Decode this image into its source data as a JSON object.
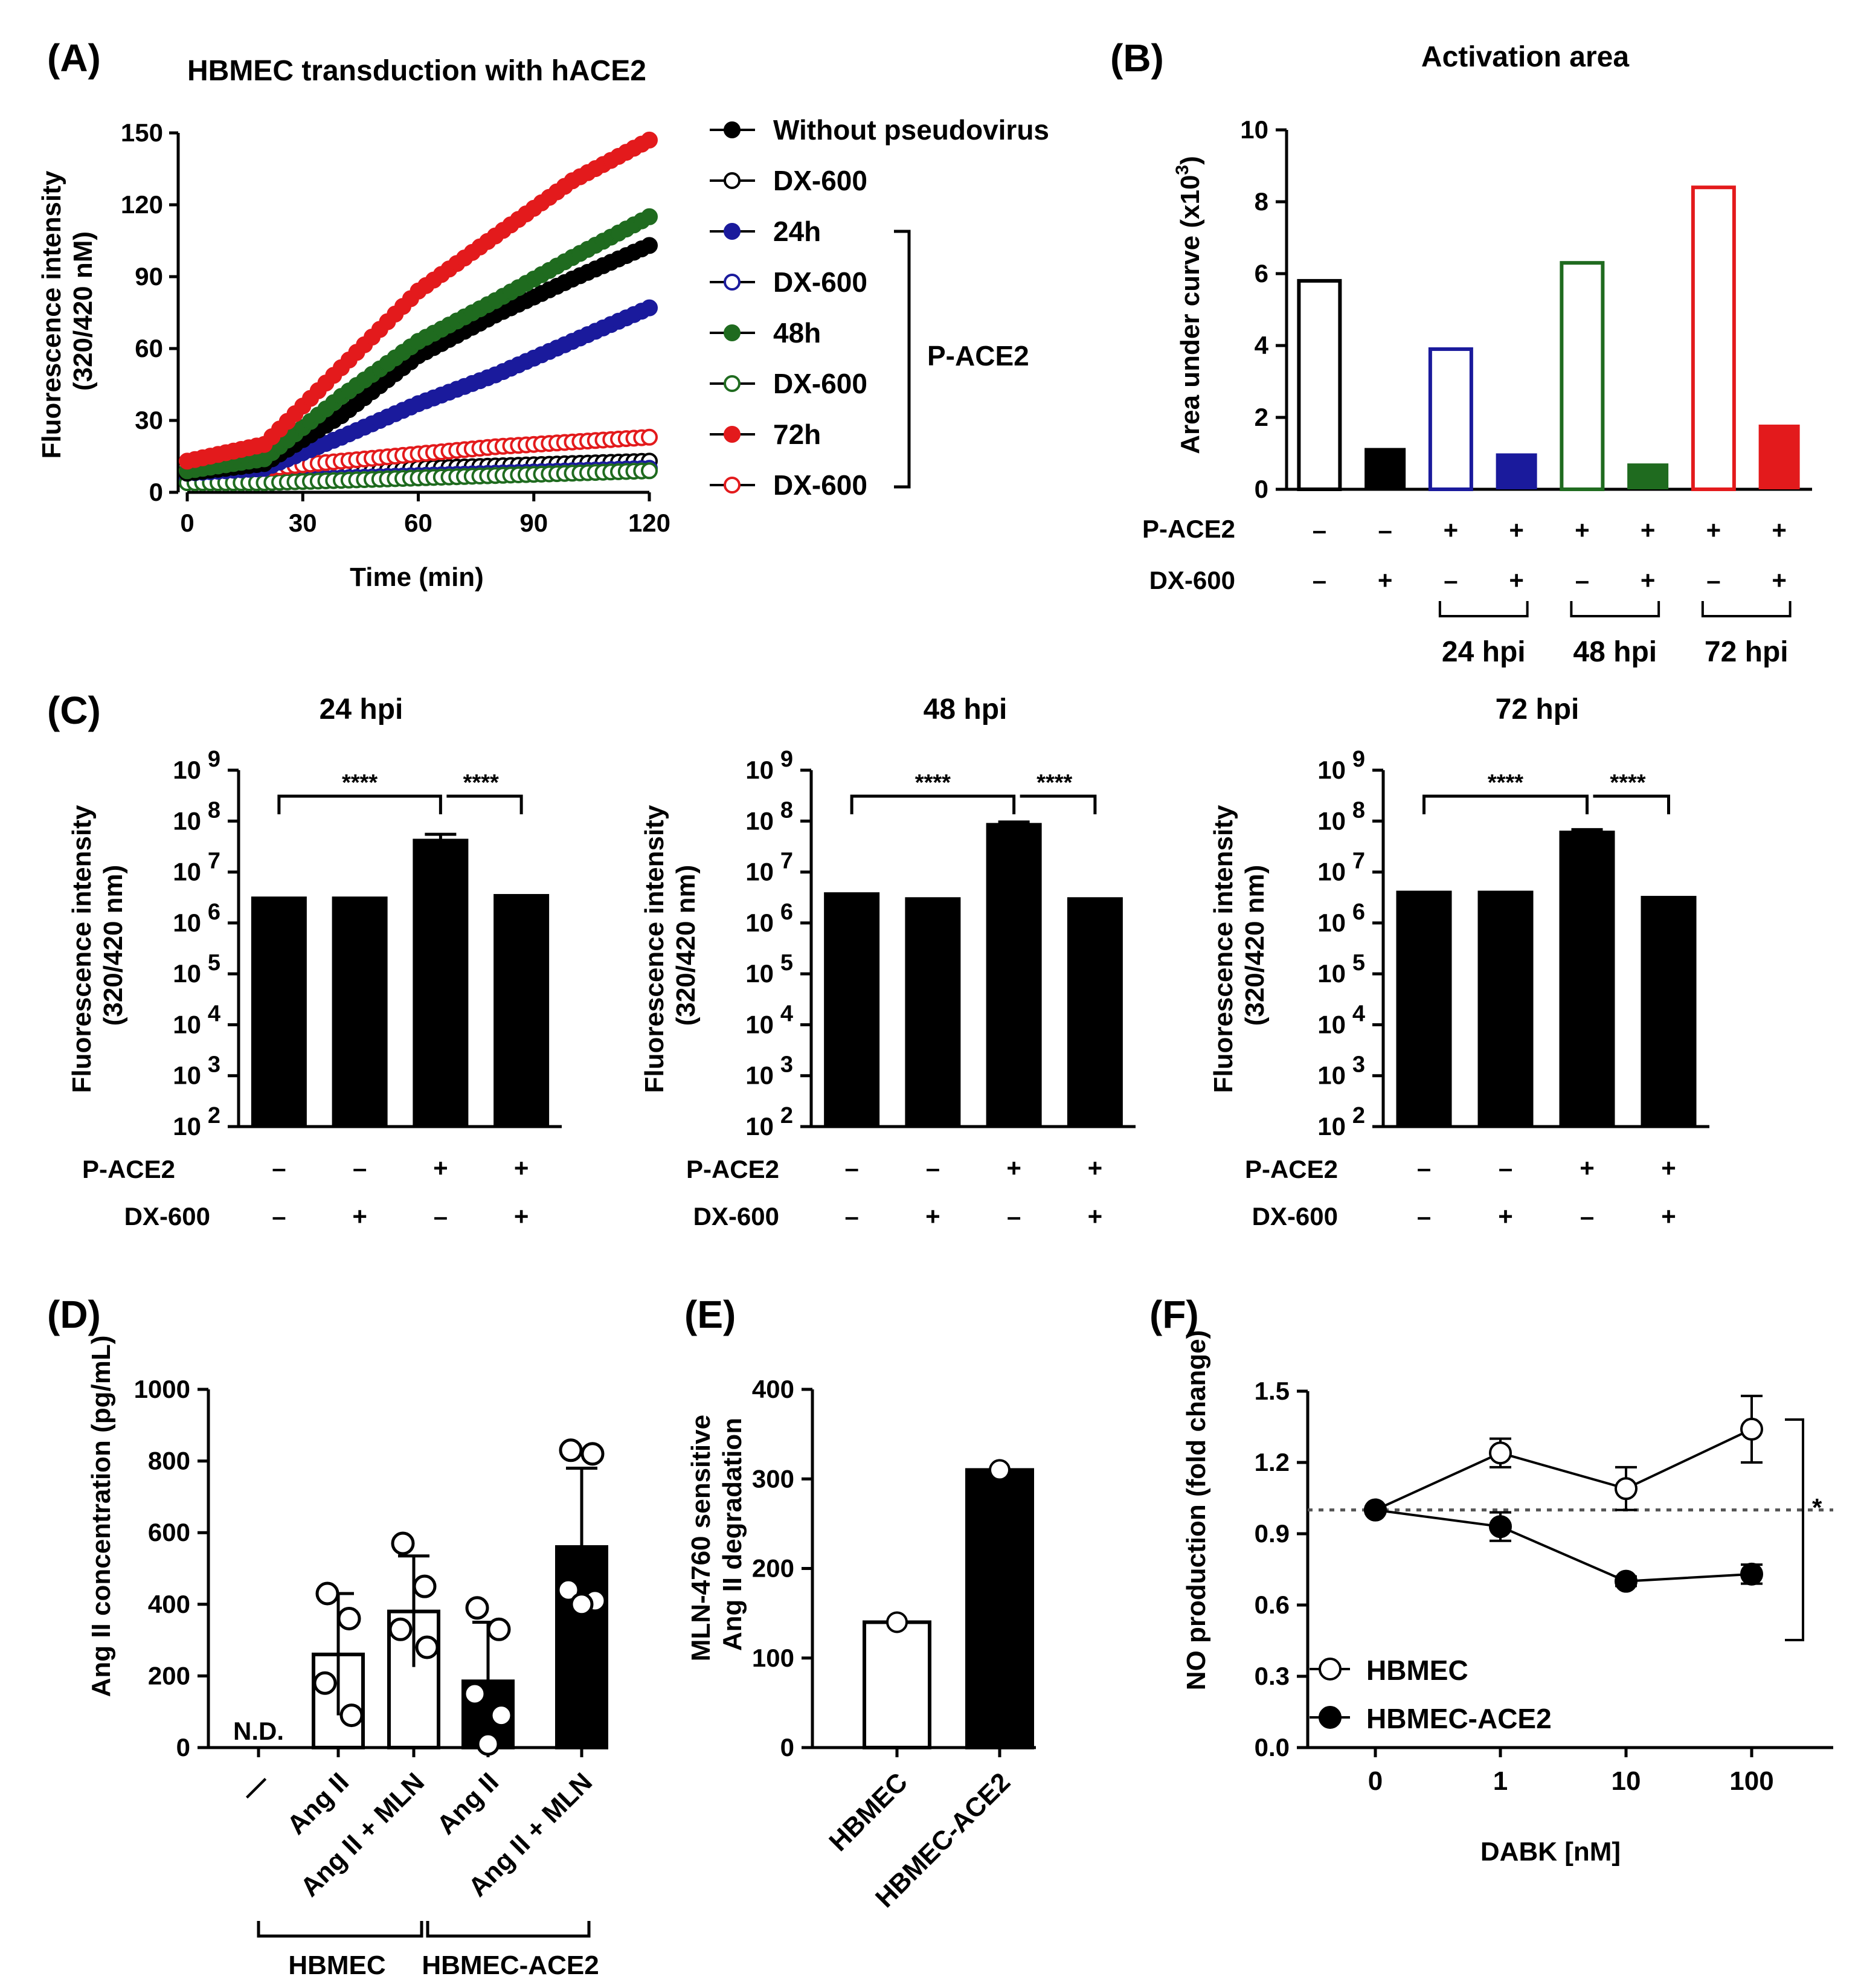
{
  "figure": {
    "A": {
      "label": "(A)",
      "title": "HBMEC transduction with hACE2",
      "xlabel": "Time (min)",
      "ylabel_line1": "Fluorescence intensity",
      "ylabel_line2": "(320/420 nM)",
      "bracket_label": "P-ACE2"
    },
    "B": {
      "label": "(B)",
      "title": "Activation area",
      "ylabel": "Area under curve (x10",
      "ylabel_exp": "3",
      "ylabel_end": ")",
      "row1_label": "P-ACE2",
      "row2_label": "DX-600",
      "group_labels": [
        "24 hpi",
        "48 hpi",
        "72 hpi"
      ]
    },
    "C": {
      "label": "(C)",
      "ylabel_line1": "Fluorescence intensity",
      "ylabel_line2": "(320/420 nm)",
      "row1_label": "P-ACE2",
      "row2_label": "DX-600",
      "sig": "****"
    },
    "D": {
      "label": "(D)",
      "ylabel": "Ang II concentration (pg/mL)",
      "nd_label": "N.D.",
      "groups": [
        "HBMEC",
        "HBMEC-ACE2"
      ]
    },
    "E": {
      "label": "(E)",
      "ylabel_line1": "MLN-4760 sensitive",
      "ylabel_line2": "Ang II degradation"
    },
    "F": {
      "label": "(F)",
      "xlabel": "DABK [nM]",
      "ylabel": "NO production (fold change)",
      "sig": "*"
    },
    "signs": {
      "minus": "–",
      "plus": "+"
    }
  },
  "chart_data": [
    {
      "panel": "A",
      "type": "scatter",
      "title": "HBMEC transduction with hACE2",
      "xlabel": "Time (min)",
      "ylabel": "Fluorescence intensity (320/420 nM)",
      "xlim": [
        0,
        120
      ],
      "ylim": [
        0,
        150
      ],
      "xticks": [
        0,
        30,
        60,
        90,
        120
      ],
      "yticks": [
        0,
        30,
        60,
        90,
        120,
        150
      ],
      "series": [
        {
          "name": "Without pseudovirus",
          "color": "#000000",
          "filled": true,
          "x": [
            0,
            20,
            40,
            60,
            80,
            100,
            120
          ],
          "y": [
            8,
            12,
            32,
            57,
            74,
            89,
            103
          ]
        },
        {
          "name": "DX-600",
          "color": "#000000",
          "filled": false,
          "x": [
            0,
            20,
            40,
            60,
            80,
            100,
            120
          ],
          "y": [
            6,
            6,
            8,
            10,
            11,
            12,
            13
          ]
        },
        {
          "name": "24h",
          "color": "#1a1a9c",
          "filled": true,
          "x": [
            0,
            20,
            40,
            60,
            80,
            100,
            120
          ],
          "y": [
            8,
            10,
            23,
            37,
            49,
            63,
            77
          ]
        },
        {
          "name": "DX-600",
          "color": "#1a1a9c",
          "filled": false,
          "x": [
            0,
            20,
            40,
            60,
            80,
            100,
            120
          ],
          "y": [
            5,
            5,
            6,
            7,
            8,
            9,
            10
          ]
        },
        {
          "name": "48h",
          "color": "#1f6b1f",
          "filled": true,
          "x": [
            0,
            20,
            40,
            60,
            80,
            100,
            120
          ],
          "y": [
            9,
            14,
            40,
            63,
            80,
            98,
            115
          ]
        },
        {
          "name": "DX-600",
          "color": "#1f6b1f",
          "filled": false,
          "x": [
            0,
            20,
            40,
            60,
            80,
            100,
            120
          ],
          "y": [
            4,
            4,
            5,
            6,
            7,
            8,
            9
          ]
        },
        {
          "name": "72h",
          "color": "#e31a1c",
          "filled": true,
          "x": [
            0,
            20,
            40,
            60,
            80,
            100,
            120
          ],
          "y": [
            13,
            20,
            52,
            84,
            107,
            130,
            147
          ]
        },
        {
          "name": "DX-600",
          "color": "#e31a1c",
          "filled": false,
          "x": [
            0,
            20,
            40,
            60,
            80,
            100,
            120
          ],
          "y": [
            9,
            10,
            13,
            16,
            19,
            21,
            23
          ]
        }
      ],
      "bracket_label": "P-ACE2"
    },
    {
      "panel": "B",
      "type": "bar",
      "title": "Activation area",
      "ylabel": "Area under curve (x10^3)",
      "ylim": [
        0,
        10
      ],
      "yticks": [
        0,
        2,
        4,
        6,
        8,
        10
      ],
      "values": [
        5.8,
        1.15,
        3.9,
        1.0,
        6.3,
        0.72,
        8.4,
        1.8
      ],
      "colors": [
        "#000000",
        "#000000",
        "#1a1a9c",
        "#1a1a9c",
        "#1f6b1f",
        "#1f6b1f",
        "#e31a1c",
        "#e31a1c"
      ],
      "filled": [
        false,
        true,
        false,
        true,
        false,
        true,
        false,
        true
      ],
      "p_ace2": [
        "–",
        "–",
        "+",
        "+",
        "+",
        "+",
        "+",
        "+"
      ],
      "dx600": [
        "–",
        "+",
        "–",
        "+",
        "–",
        "+",
        "–",
        "+"
      ],
      "groups": [
        "24 hpi",
        "48 hpi",
        "72 hpi"
      ]
    },
    {
      "panel": "C1",
      "type": "bar",
      "title": "24 hpi",
      "ylabel": "Fluorescence intensity (320/420 nm)",
      "yscale": "log",
      "ylim": [
        100,
        1000000000
      ],
      "ytick_exps": [
        "2",
        "3",
        "4",
        "5",
        "6",
        "7",
        "8",
        "9"
      ],
      "values": [
        3300000,
        3300000,
        45000000,
        3700000
      ],
      "error": [
        0,
        0,
        10000000,
        0
      ],
      "p_ace2": [
        "–",
        "–",
        "+",
        "+"
      ],
      "dx600": [
        "–",
        "+",
        "–",
        "+"
      ],
      "significance": [
        "****",
        "****"
      ]
    },
    {
      "panel": "C2",
      "type": "bar",
      "title": "48 hpi",
      "ylabel": "Fluorescence intensity (320/420 nm)",
      "yscale": "log",
      "ylim": [
        100,
        1000000000
      ],
      "ytick_exps": [
        "2",
        "3",
        "4",
        "5",
        "6",
        "7",
        "8",
        "9"
      ],
      "values": [
        4000000,
        3200000,
        92000000,
        3200000
      ],
      "error": [
        0,
        0,
        4000000,
        0
      ],
      "p_ace2": [
        "–",
        "–",
        "+",
        "+"
      ],
      "dx600": [
        "–",
        "+",
        "–",
        "+"
      ],
      "significance": [
        "****",
        "****"
      ]
    },
    {
      "panel": "C3",
      "type": "bar",
      "title": "72 hpi",
      "ylabel": "Fluorescence intensity (320/420 nm)",
      "yscale": "log",
      "ylim": [
        100,
        1000000000
      ],
      "ytick_exps": [
        "2",
        "3",
        "4",
        "5",
        "6",
        "7",
        "8",
        "9"
      ],
      "values": [
        4300000,
        4300000,
        65000000,
        3400000
      ],
      "error": [
        0,
        0,
        3000000,
        0
      ],
      "p_ace2": [
        "–",
        "–",
        "+",
        "+"
      ],
      "dx600": [
        "–",
        "+",
        "–",
        "+"
      ],
      "significance": [
        "****",
        "****"
      ]
    },
    {
      "panel": "D",
      "type": "bar",
      "ylabel": "Ang II concentration (pg/mL)",
      "ylim": [
        0,
        1000
      ],
      "yticks": [
        0,
        200,
        400,
        600,
        800,
        1000
      ],
      "categories": [
        "—",
        "Ang II",
        "Ang II + MLN",
        "Ang II",
        "Ang II + MLN"
      ],
      "values": [
        0,
        260,
        380,
        185,
        560
      ],
      "error": [
        0,
        170,
        155,
        165,
        220
      ],
      "filled": [
        false,
        false,
        false,
        true,
        true
      ],
      "points": [
        [],
        [
          430,
          360,
          180,
          90
        ],
        [
          570,
          450,
          330,
          280
        ],
        [
          390,
          330,
          150,
          90,
          10
        ],
        [
          830,
          820,
          440,
          410,
          400
        ]
      ],
      "nd": "N.D.",
      "groups": [
        "HBMEC",
        "HBMEC-ACE2"
      ]
    },
    {
      "panel": "E",
      "type": "bar",
      "ylabel": "MLN-4760 sensitive Ang II degradation",
      "ylim": [
        0,
        400
      ],
      "yticks": [
        0,
        100,
        200,
        300,
        400
      ],
      "categories": [
        "HBMEC",
        "HBMEC-ACE2"
      ],
      "values": [
        140,
        310
      ],
      "filled": [
        false,
        true
      ]
    },
    {
      "panel": "F",
      "type": "line",
      "xlabel": "DABK [nM]",
      "ylabel": "NO production (fold change)",
      "ylim": [
        0,
        1.5
      ],
      "yticks": [
        "0.0",
        "0.3",
        "0.6",
        "0.9",
        "1.2",
        "1.5"
      ],
      "categories": [
        "0",
        "1",
        "10",
        "100"
      ],
      "reference_line": 1.0,
      "series": [
        {
          "name": "HBMEC",
          "filled": false,
          "values": [
            1.0,
            1.24,
            1.09,
            1.34
          ],
          "error": [
            0,
            0.06,
            0.09,
            0.14
          ]
        },
        {
          "name": "HBMEC-ACE2",
          "filled": true,
          "values": [
            1.0,
            0.93,
            0.7,
            0.73
          ],
          "error": [
            0,
            0.06,
            0.02,
            0.04
          ]
        }
      ],
      "significance": "*"
    }
  ]
}
